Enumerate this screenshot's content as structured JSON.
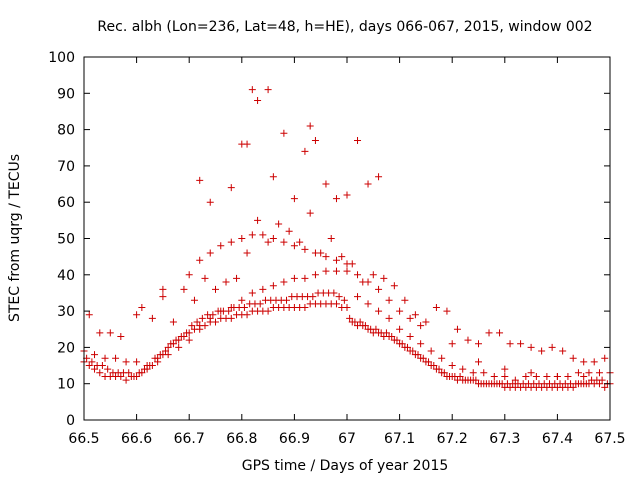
{
  "chart_data": {
    "type": "scatter",
    "title": "Rec. albh (Lon=236, Lat=48, h=HE), days 066-067, 2015, window 002",
    "xlabel": "GPS time / Days of year 2015",
    "ylabel": "STEC from uqrg / TECUs",
    "xlim": [
      66.5,
      67.5
    ],
    "ylim": [
      0,
      100
    ],
    "grid": false,
    "legend": "none",
    "marker": "plus",
    "color": "#cc0000",
    "xticks": [
      "66.5",
      "66.6",
      "66.7",
      "66.8",
      "66.9",
      "67",
      "67.1",
      "67.2",
      "67.3",
      "67.4",
      "67.5"
    ],
    "yticks": [
      "0",
      "10",
      "20",
      "30",
      "40",
      "50",
      "60",
      "70",
      "80",
      "90",
      "100"
    ],
    "x": [
      66.5,
      66.51,
      66.52,
      66.53,
      66.54,
      66.55,
      66.56,
      66.57,
      66.58,
      66.59,
      66.6,
      66.61,
      66.62,
      66.63,
      66.64,
      66.65,
      66.66,
      66.67,
      66.68,
      66.69,
      66.7,
      66.71,
      66.72,
      66.73,
      66.74,
      66.75,
      66.76,
      66.77,
      66.78,
      66.79,
      66.8,
      66.81,
      66.82,
      66.83,
      66.84,
      66.85,
      66.86,
      66.87,
      66.88,
      66.89,
      66.9,
      66.91,
      66.92,
      66.93,
      66.94,
      66.95,
      66.96,
      66.97,
      66.98,
      66.99,
      67.0,
      67.01,
      67.02,
      67.03,
      67.04,
      67.05,
      67.06,
      67.07,
      67.08,
      67.09,
      67.1,
      67.11,
      67.12,
      67.13,
      67.14,
      67.15,
      67.16,
      67.17,
      67.18,
      67.19,
      67.2,
      67.21,
      67.22,
      67.23,
      67.24,
      67.25,
      67.26,
      67.27,
      67.28,
      67.29,
      67.3,
      67.31,
      67.32,
      67.33,
      67.34,
      67.35,
      67.36,
      67.37,
      67.38,
      67.39,
      67.4,
      67.41,
      67.42,
      67.43,
      67.44,
      67.45,
      67.46,
      67.47,
      67.48,
      67.49,
      67.5,
      66.505,
      66.515,
      66.525,
      66.535,
      66.545,
      66.555,
      66.565,
      66.575,
      66.585,
      66.595,
      66.605,
      66.615,
      66.625,
      66.635,
      66.645,
      66.655,
      66.665,
      66.675,
      66.685,
      66.695,
      66.705,
      66.715,
      66.725,
      66.735,
      66.745,
      66.755,
      66.765,
      66.775,
      66.785,
      66.795,
      66.805,
      66.815,
      66.825,
      66.835,
      66.845,
      66.855,
      66.865,
      66.875,
      66.885,
      66.895,
      66.905,
      66.915,
      66.925,
      66.935,
      66.945,
      66.955,
      66.965,
      66.975,
      66.985,
      66.995,
      67.005,
      67.015,
      67.025,
      67.035,
      67.045,
      67.055,
      67.065,
      67.075,
      67.085,
      67.095,
      67.105,
      67.115,
      67.125,
      67.135,
      67.145,
      67.155,
      67.165,
      67.175,
      67.185,
      67.195,
      67.205,
      67.215,
      67.225,
      67.235,
      67.245,
      67.255,
      67.265,
      67.275,
      67.285,
      67.295,
      67.305,
      67.315,
      67.325,
      67.335,
      67.345,
      67.355,
      67.365,
      67.375,
      67.385,
      67.395,
      67.405,
      67.415,
      67.425,
      67.435,
      67.445,
      67.455,
      67.465,
      67.475,
      67.485,
      67.495,
      66.5,
      66.52,
      66.54,
      66.56,
      66.58,
      66.6,
      66.62,
      66.64,
      66.66,
      66.68,
      66.7,
      66.72,
      66.74,
      66.76,
      66.78,
      66.8,
      66.82,
      66.84,
      66.86,
      66.88,
      66.9,
      66.92,
      66.94,
      66.96,
      66.98,
      67.0,
      67.02,
      67.04,
      67.06,
      67.08,
      67.1,
      67.12,
      67.14,
      67.16,
      67.18,
      67.2,
      67.22,
      67.24,
      67.26,
      67.28,
      67.3,
      67.32,
      67.34,
      67.36,
      67.38,
      67.4,
      67.42,
      67.44,
      67.46,
      67.48,
      67.5,
      66.55,
      66.6,
      66.65,
      66.7,
      66.72,
      66.74,
      66.76,
      66.78,
      66.8,
      66.82,
      66.84,
      66.86,
      66.88,
      66.9,
      66.92,
      66.94,
      66.96,
      66.98,
      67.0,
      67.02,
      67.04,
      67.06,
      67.08,
      67.1,
      67.12,
      67.14,
      67.2,
      67.25,
      67.3,
      67.35,
      67.4,
      67.45,
      66.51,
      66.53,
      66.57,
      66.61,
      66.63,
      66.65,
      66.67,
      66.69,
      66.71,
      66.73,
      66.75,
      66.77,
      66.79,
      66.81,
      66.83,
      66.85,
      66.87,
      66.89,
      66.91,
      66.93,
      66.95,
      66.97,
      66.99,
      67.01,
      67.03,
      67.05,
      67.07,
      67.09,
      67.11,
      67.13,
      67.15,
      67.17,
      67.19,
      67.21,
      67.23,
      67.25,
      67.27,
      67.29,
      67.31,
      67.33,
      67.35,
      67.37,
      67.39,
      67.41,
      67.43,
      67.45,
      67.47,
      67.49,
      66.82,
      66.83,
      66.85,
      66.93,
      66.94,
      67.02,
      66.81,
      66.88,
      66.92,
      67.04,
      67.06,
      66.72,
      66.8,
      66.86,
      66.96,
      67.0,
      66.98,
      66.74,
      66.78,
      66.9
    ],
    "y": [
      16,
      15,
      14,
      13,
      12,
      12,
      12,
      12,
      11,
      12,
      12,
      13,
      14,
      15,
      16,
      18,
      20,
      21,
      22,
      23,
      24,
      25,
      26,
      26,
      27,
      27,
      28,
      28,
      28,
      29,
      29,
      29,
      30,
      30,
      30,
      30,
      31,
      31,
      31,
      31,
      31,
      31,
      31,
      32,
      32,
      32,
      32,
      32,
      32,
      31,
      31,
      27,
      26,
      26,
      25,
      24,
      24,
      23,
      23,
      22,
      21,
      20,
      19,
      18,
      17,
      16,
      15,
      14,
      13,
      12,
      12,
      11,
      11,
      11,
      11,
      10,
      10,
      10,
      10,
      10,
      9,
      9,
      9,
      9,
      9,
      9,
      9,
      9,
      9,
      9,
      9,
      9,
      9,
      9,
      10,
      10,
      10,
      10,
      10,
      9,
      10,
      17,
      16,
      15,
      15,
      14,
      13,
      13,
      13,
      13,
      12,
      13,
      14,
      15,
      17,
      18,
      19,
      21,
      22,
      23,
      24,
      26,
      27,
      28,
      29,
      29,
      30,
      30,
      30,
      31,
      31,
      31,
      32,
      32,
      32,
      33,
      33,
      33,
      33,
      33,
      34,
      34,
      34,
      34,
      34,
      35,
      35,
      35,
      35,
      34,
      33,
      28,
      27,
      27,
      26,
      25,
      25,
      24,
      24,
      23,
      22,
      21,
      20,
      19,
      18,
      17,
      16,
      15,
      14,
      13,
      12,
      12,
      12,
      11,
      11,
      11,
      10,
      10,
      10,
      10,
      10,
      10,
      10,
      10,
      10,
      10,
      10,
      10,
      10,
      10,
      10,
      10,
      10,
      10,
      10,
      10,
      10,
      11,
      11,
      11,
      10,
      19,
      18,
      17,
      17,
      16,
      16,
      15,
      17,
      18,
      20,
      22,
      25,
      28,
      30,
      31,
      33,
      35,
      36,
      37,
      38,
      39,
      39,
      40,
      41,
      41,
      41,
      34,
      32,
      30,
      28,
      25,
      23,
      21,
      19,
      17,
      15,
      14,
      13,
      13,
      12,
      12,
      11,
      12,
      12,
      12,
      12,
      12,
      13,
      13,
      13,
      13,
      24,
      29,
      34,
      40,
      44,
      46,
      48,
      49,
      50,
      51,
      51,
      50,
      49,
      48,
      47,
      46,
      45,
      44,
      43,
      40,
      38,
      36,
      33,
      30,
      28,
      26,
      21,
      16,
      14,
      13,
      12,
      12,
      29,
      24,
      23,
      31,
      28,
      36,
      27,
      36,
      33,
      39,
      36,
      38,
      39,
      46,
      55,
      49,
      54,
      52,
      49,
      57,
      46,
      50,
      45,
      43,
      38,
      40,
      39,
      37,
      33,
      29,
      27,
      31,
      30,
      25,
      22,
      21,
      24,
      24,
      21,
      21,
      20,
      19,
      20,
      19,
      17,
      16,
      16,
      17,
      91,
      88,
      91,
      81,
      77,
      77,
      76,
      79,
      74,
      65,
      67,
      66,
      76,
      67,
      65,
      62,
      61,
      60,
      64,
      61
    ]
  }
}
